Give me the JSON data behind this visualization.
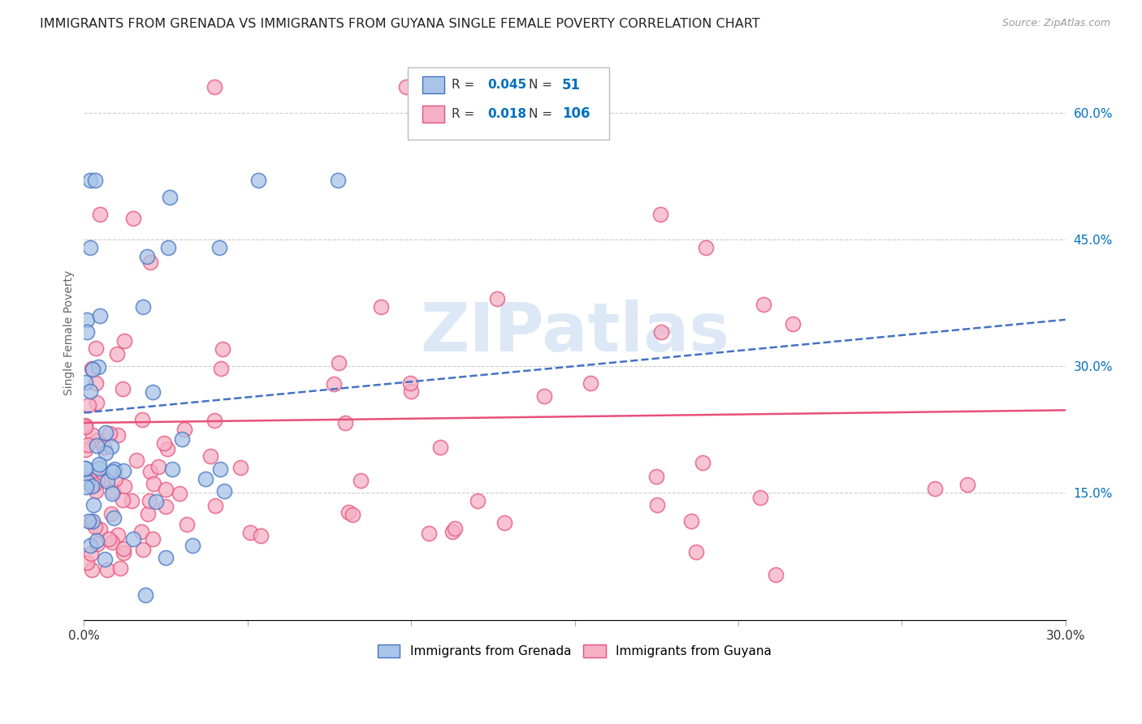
{
  "title": "IMMIGRANTS FROM GRENADA VS IMMIGRANTS FROM GUYANA SINGLE FEMALE POVERTY CORRELATION CHART",
  "source": "Source: ZipAtlas.com",
  "ylabel": "Single Female Poverty",
  "xmin": 0.0,
  "xmax": 0.3,
  "ymin": 0.0,
  "ymax": 0.68,
  "grenada_R": 0.045,
  "grenada_N": 51,
  "guyana_R": 0.018,
  "guyana_N": 106,
  "grenada_color": "#a8c4e8",
  "guyana_color": "#f5b0c5",
  "grenada_line_color": "#4472c4",
  "guyana_line_color": "#e8507a",
  "legend_R_color": "#0070c0",
  "watermark": "ZIPatlas",
  "watermark_color": "#dce8f5",
  "background_color": "#ffffff",
  "grid_color": "#cccccc",
  "title_fontsize": 11.5,
  "axis_label_fontsize": 10,
  "tick_fontsize": 11,
  "xtick_positions": [
    0.0,
    0.05,
    0.1,
    0.15,
    0.2,
    0.25,
    0.3
  ],
  "xtick_labels_show": [
    "0.0%",
    "",
    "",
    "",
    "",
    "",
    "30.0%"
  ],
  "ytick_right": [
    0.0,
    0.15,
    0.3,
    0.45,
    0.6
  ],
  "ytick_right_labels": [
    "",
    "15.0%",
    "30.0%",
    "45.0%",
    "60.0%"
  ],
  "grenada_trend_x0": 0.0,
  "grenada_trend_y0": 0.245,
  "grenada_trend_x1": 0.3,
  "grenada_trend_y1": 0.355,
  "guyana_trend_x0": 0.0,
  "guyana_trend_y0": 0.233,
  "guyana_trend_x1": 0.3,
  "guyana_trend_y1": 0.248
}
